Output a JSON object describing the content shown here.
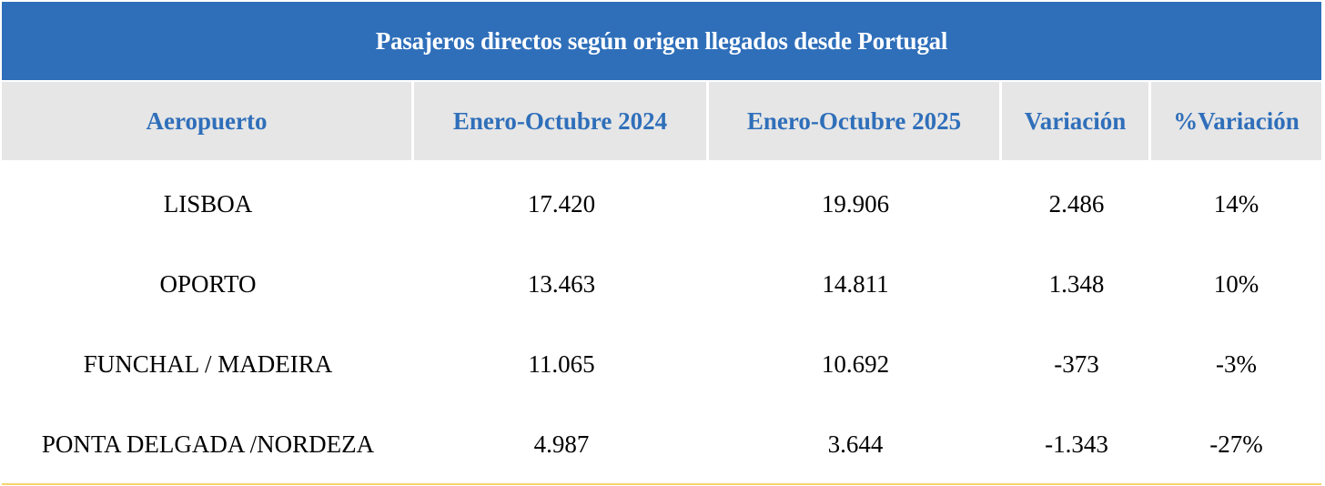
{
  "title": "Pasajeros directos según origen llegados desde Portugal",
  "colors": {
    "header_bg": "#2f6fba",
    "subheader_bg": "#e6e6e6",
    "subheader_text": "#2f6fba",
    "bottom_rule": "#f5d36a"
  },
  "columns": [
    "Aeropuerto",
    "Enero-Octubre 2024",
    "Enero-Octubre 2025",
    "Variación",
    "%Variación"
  ],
  "rows": [
    [
      "LISBOA",
      "17.420",
      "19.906",
      "2.486",
      "14%"
    ],
    [
      "OPORTO",
      "13.463",
      "14.811",
      "1.348",
      "10%"
    ],
    [
      "FUNCHAL / MADEIRA",
      "11.065",
      "10.692",
      "-373",
      "-3%"
    ],
    [
      "PONTA DELGADA /NORDEZA",
      "4.987",
      "3.644",
      "-1.343",
      "-27%"
    ]
  ]
}
